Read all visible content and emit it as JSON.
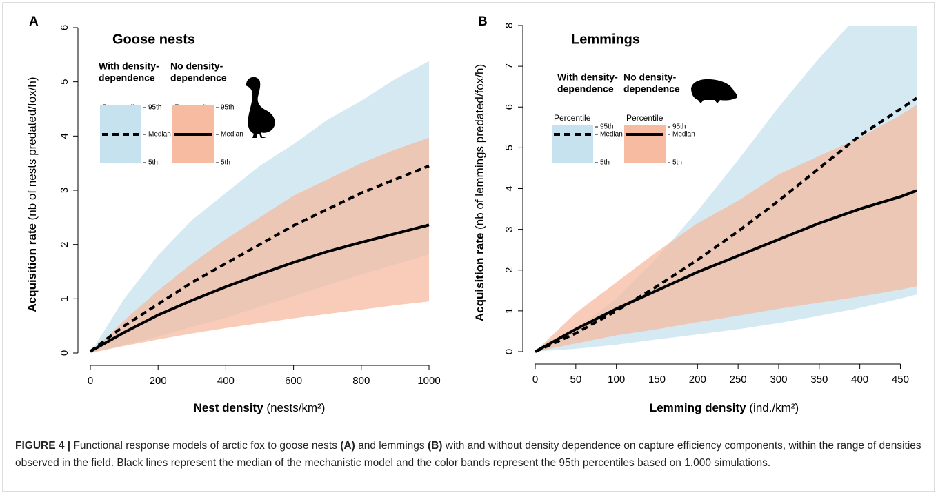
{
  "caption": [
    {
      "text": "FIGURE 4 |",
      "bold": true
    },
    {
      "text": " Functional response models of arctic fox to goose nests ",
      "bold": false
    },
    {
      "text": "(A)",
      "bold": true
    },
    {
      "text": " and lemmings ",
      "bold": false
    },
    {
      "text": "(B)",
      "bold": true
    },
    {
      "text": " with and without density dependence on capture efficiency components, within the range of densities observed in the field. Black lines represent the median of the mechanistic model and the color bands represent the 95th percentiles based on 1,000 simulations.",
      "bold": false
    }
  ],
  "chart_data": [
    {
      "type": "line",
      "panel": "A",
      "title": "Goose nests",
      "x_label": "Nest density",
      "x_unit": "(nests/km²)",
      "y_label": "Acquisition rate",
      "y_unit": "(nb of nests predated/fox/h)",
      "legend": {
        "percentile": "Percentile",
        "upper": "95th",
        "median": "Median",
        "lower": "5th"
      },
      "x": [
        0,
        100,
        200,
        300,
        400,
        500,
        600,
        700,
        800,
        900,
        1000
      ],
      "xlim": [
        0,
        1000
      ],
      "xticks": [
        0,
        200,
        400,
        600,
        800,
        1000
      ],
      "ylim": [
        0,
        6
      ],
      "yticks": [
        0,
        1,
        2,
        3,
        4,
        5,
        6
      ],
      "line_color": "#000000",
      "series": [
        {
          "name": [
            "With density-",
            "dependence"
          ],
          "color": "#c6e2ee",
          "dashed": true,
          "values": [
            0.03,
            0.5,
            0.9,
            1.3,
            1.65,
            2.0,
            2.35,
            2.65,
            2.95,
            3.2,
            3.45
          ],
          "upper": [
            0,
            1.0,
            1.8,
            2.45,
            2.95,
            3.45,
            3.85,
            4.3,
            4.65,
            5.05,
            5.38
          ],
          "lower": [
            0,
            0.15,
            0.3,
            0.48,
            0.65,
            0.85,
            1.05,
            1.25,
            1.45,
            1.63,
            1.82
          ]
        },
        {
          "name": [
            "No density-",
            "dependence"
          ],
          "color": "#f6bba0",
          "dashed": false,
          "values": [
            0.03,
            0.38,
            0.7,
            0.97,
            1.22,
            1.45,
            1.67,
            1.87,
            2.04,
            2.2,
            2.36
          ],
          "upper": [
            0,
            0.6,
            1.15,
            1.65,
            2.1,
            2.5,
            2.9,
            3.2,
            3.5,
            3.75,
            3.97
          ],
          "lower": [
            0,
            0.13,
            0.25,
            0.36,
            0.46,
            0.55,
            0.64,
            0.72,
            0.8,
            0.88,
            0.95
          ]
        }
      ]
    },
    {
      "type": "line",
      "panel": "B",
      "title": "Lemmings",
      "x_label": "Lemming density",
      "x_unit": "(ind./km²)",
      "y_label": "Acquisition rate",
      "y_unit": "(nb of lemmings predated/fox/h)",
      "legend": {
        "percentile": "Percentile",
        "upper": "95th",
        "median": "Median",
        "lower": "5th"
      },
      "x": [
        0,
        50,
        100,
        150,
        200,
        250,
        300,
        350,
        400,
        450,
        470
      ],
      "xlim": [
        0,
        470
      ],
      "xticks": [
        0,
        50,
        100,
        150,
        200,
        250,
        300,
        350,
        400,
        450
      ],
      "ylim": [
        0,
        8
      ],
      "yticks": [
        0,
        1,
        2,
        3,
        4,
        5,
        6,
        7,
        8
      ],
      "line_color": "#000000",
      "series": [
        {
          "name": [
            "With density-",
            "dependence"
          ],
          "color": "#c6e2ee",
          "dashed": true,
          "values": [
            0,
            0.45,
            1.0,
            1.6,
            2.25,
            2.95,
            3.7,
            4.5,
            5.3,
            5.95,
            6.22
          ],
          "upper": [
            0,
            0.55,
            1.3,
            2.3,
            3.45,
            4.7,
            6.0,
            7.2,
            8.3,
            9.0,
            9.3
          ],
          "lower": [
            0,
            0.07,
            0.17,
            0.3,
            0.42,
            0.55,
            0.7,
            0.88,
            1.07,
            1.3,
            1.4
          ]
        },
        {
          "name": [
            "No density-",
            "dependence"
          ],
          "color": "#f6bba0",
          "dashed": false,
          "values": [
            0,
            0.55,
            1.05,
            1.5,
            1.95,
            2.35,
            2.75,
            3.15,
            3.5,
            3.8,
            3.95
          ],
          "upper": [
            0,
            0.95,
            1.7,
            2.45,
            3.15,
            3.7,
            4.35,
            4.8,
            5.25,
            5.8,
            6.05
          ],
          "lower": [
            0,
            0.2,
            0.4,
            0.55,
            0.72,
            0.88,
            1.05,
            1.2,
            1.35,
            1.52,
            1.6
          ]
        }
      ]
    }
  ]
}
